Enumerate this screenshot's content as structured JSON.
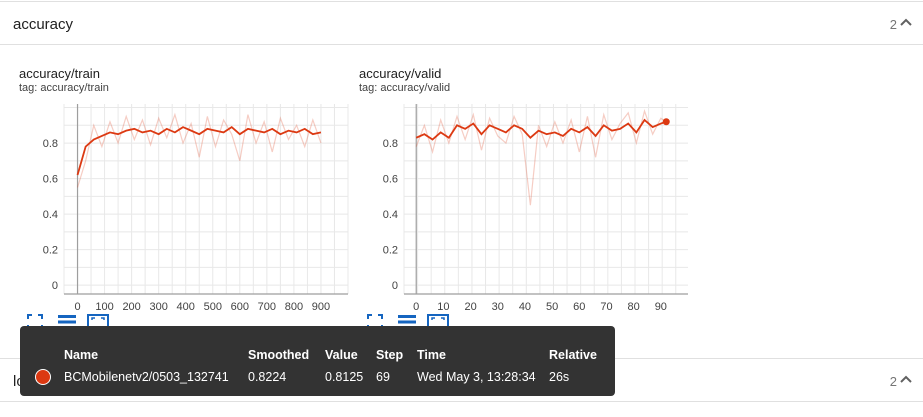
{
  "sections": {
    "accuracy": {
      "name": "accuracy",
      "count": "2"
    },
    "loss": {
      "name": "loss",
      "count": "2"
    }
  },
  "cards": {
    "train": {
      "title": "accuracy/train",
      "tag": "tag: accuracy/train",
      "chart_data": {
        "type": "line",
        "title": "accuracy/train",
        "x_ticks": [
          0,
          100,
          200,
          300,
          400,
          500,
          600,
          700,
          800,
          900
        ],
        "y_ticks": [
          0,
          0.2,
          0.4,
          0.6,
          0.8
        ],
        "xlim": [
          -50,
          1000
        ],
        "ylim": [
          -0.05,
          1.02
        ],
        "grid": true,
        "series": [
          {
            "name": "BCMobilenetv2/0503_132741",
            "color": "#dc3912",
            "x": [
              0,
              30,
              60,
              90,
              120,
              150,
              180,
              210,
              240,
              270,
              300,
              330,
              360,
              390,
              420,
              450,
              480,
              510,
              540,
              570,
              600,
              630,
              660,
              690,
              720,
              750,
              780,
              810,
              840,
              870,
              900
            ],
            "smoothed": [
              0.62,
              0.78,
              0.82,
              0.84,
              0.86,
              0.85,
              0.87,
              0.88,
              0.86,
              0.87,
              0.85,
              0.88,
              0.86,
              0.89,
              0.87,
              0.85,
              0.88,
              0.87,
              0.86,
              0.89,
              0.85,
              0.88,
              0.87,
              0.86,
              0.88,
              0.85,
              0.87,
              0.86,
              0.88,
              0.85,
              0.86
            ],
            "raw": [
              0.55,
              0.7,
              0.9,
              0.78,
              0.92,
              0.8,
              0.95,
              0.82,
              0.93,
              0.79,
              0.94,
              0.83,
              0.96,
              0.8,
              0.91,
              0.72,
              0.95,
              0.78,
              0.93,
              0.85,
              0.7,
              0.96,
              0.8,
              0.92,
              0.75,
              0.94,
              0.82,
              0.9,
              0.78,
              0.93,
              0.8
            ]
          }
        ]
      }
    },
    "valid": {
      "title": "accuracy/valid",
      "tag": "tag: accuracy/valid",
      "chart_data": {
        "type": "line",
        "title": "accuracy/valid",
        "x_ticks": [
          0,
          10,
          20,
          30,
          40,
          50,
          60,
          70,
          80,
          90
        ],
        "y_ticks": [
          0,
          0.2,
          0.4,
          0.6,
          0.8
        ],
        "xlim": [
          -4.5,
          100
        ],
        "ylim": [
          -0.05,
          1.02
        ],
        "grid": true,
        "series": [
          {
            "name": "BCMobilenetv2/0503_132741",
            "color": "#dc3912",
            "x": [
              0,
              3,
              6,
              9,
              12,
              15,
              18,
              21,
              24,
              27,
              30,
              33,
              36,
              39,
              42,
              45,
              48,
              51,
              54,
              57,
              60,
              63,
              66,
              69,
              72,
              75,
              78,
              81,
              84,
              87,
              90,
              92
            ],
            "smoothed": [
              0.83,
              0.85,
              0.82,
              0.86,
              0.83,
              0.9,
              0.88,
              0.91,
              0.85,
              0.9,
              0.88,
              0.86,
              0.9,
              0.88,
              0.83,
              0.87,
              0.85,
              0.86,
              0.84,
              0.88,
              0.86,
              0.89,
              0.84,
              0.9,
              0.87,
              0.88,
              0.91,
              0.86,
              0.93,
              0.89,
              0.91,
              0.92
            ],
            "raw": [
              0.78,
              0.9,
              0.75,
              0.93,
              0.8,
              0.95,
              0.82,
              0.96,
              0.76,
              0.94,
              0.84,
              0.8,
              0.95,
              0.85,
              0.45,
              0.9,
              0.78,
              0.92,
              0.8,
              0.93,
              0.75,
              0.95,
              0.72,
              0.96,
              0.82,
              0.91,
              0.97,
              0.8,
              0.98,
              0.85,
              0.94,
              0.92
            ]
          }
        ]
      }
    }
  },
  "icons": [
    "fullscreen-icon",
    "list-icon",
    "fit-domain-icon"
  ],
  "tooltip": {
    "headers": {
      "name": "Name",
      "smoothed": "Smoothed",
      "value": "Value",
      "step": "Step",
      "time": "Time",
      "relative": "Relative"
    },
    "row": {
      "color": "#dc3912",
      "name": "BCMobilenetv2/0503_132741",
      "smoothed": "0.8224",
      "value": "0.8125",
      "step": "69",
      "time": "Wed May 3, 13:28:34",
      "relative": "26s"
    }
  }
}
